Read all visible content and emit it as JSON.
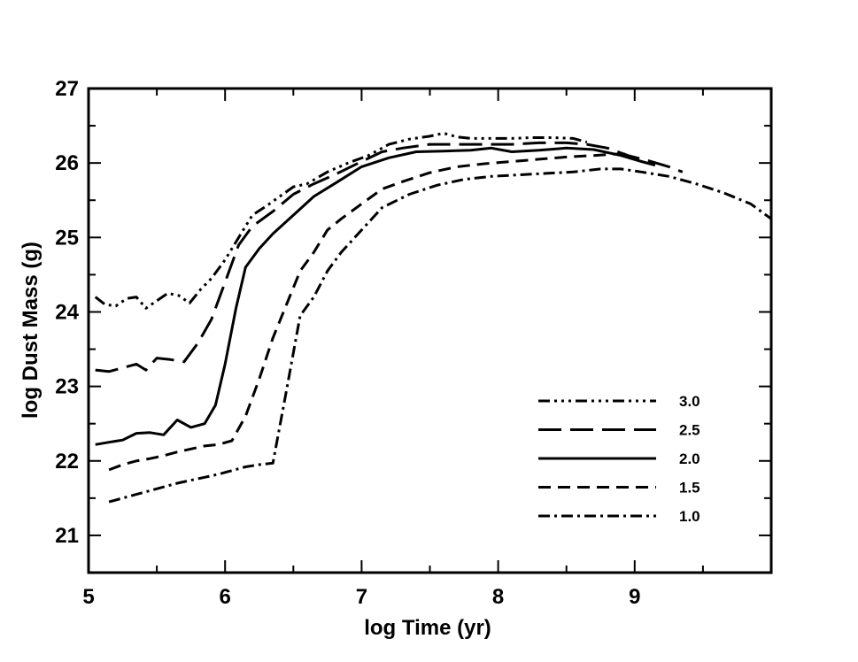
{
  "chart_data": {
    "type": "line",
    "title": "",
    "xlabel": "log Time (yr)",
    "ylabel": "log Dust Mass (g)",
    "xlim": [
      5,
      10
    ],
    "ylim": [
      20.5,
      27
    ],
    "x_ticks": [
      5,
      6,
      7,
      8,
      9
    ],
    "y_ticks": [
      21,
      22,
      23,
      24,
      25,
      26,
      27
    ],
    "legend_position": "lower-right",
    "series": [
      {
        "name": "3.0",
        "dash": "dash-dot-dot-dot",
        "x": [
          5.05,
          5.12,
          5.2,
          5.28,
          5.35,
          5.42,
          5.5,
          5.58,
          5.66,
          5.74,
          5.82,
          5.9,
          6.0,
          6.1,
          6.2,
          6.3,
          6.4,
          6.5,
          6.6,
          6.75,
          6.9,
          7.05,
          7.2,
          7.35,
          7.5,
          7.6,
          7.7,
          7.8,
          7.95,
          8.1,
          8.25,
          8.4,
          8.55,
          8.65
        ],
        "y": [
          24.2,
          24.1,
          24.08,
          24.18,
          24.2,
          24.05,
          24.15,
          24.25,
          24.22,
          24.12,
          24.3,
          24.45,
          24.7,
          25.0,
          25.3,
          25.42,
          25.55,
          25.68,
          25.72,
          25.88,
          26.0,
          26.1,
          26.25,
          26.32,
          26.36,
          26.4,
          26.35,
          26.33,
          26.33,
          26.33,
          26.34,
          26.34,
          26.33,
          26.28
        ]
      },
      {
        "name": "2.5",
        "dash": "long-dash",
        "x": [
          5.05,
          5.15,
          5.25,
          5.35,
          5.42,
          5.5,
          5.6,
          5.7,
          5.8,
          5.9,
          6.0,
          6.1,
          6.2,
          6.35,
          6.5,
          6.65,
          6.8,
          7.0,
          7.15,
          7.3,
          7.5,
          7.7,
          7.9,
          8.1,
          8.3,
          8.5,
          8.65,
          8.8,
          8.95,
          9.1,
          9.25,
          9.35
        ],
        "y": [
          23.22,
          23.2,
          23.25,
          23.3,
          23.22,
          23.38,
          23.36,
          23.33,
          23.58,
          23.9,
          24.4,
          24.9,
          25.15,
          25.35,
          25.58,
          25.72,
          25.84,
          26.02,
          26.15,
          26.2,
          26.25,
          26.25,
          26.25,
          26.25,
          26.27,
          26.27,
          26.25,
          26.2,
          26.1,
          26.03,
          25.95,
          25.88
        ]
      },
      {
        "name": "2.0",
        "dash": "solid",
        "x": [
          5.05,
          5.15,
          5.25,
          5.35,
          5.45,
          5.55,
          5.65,
          5.75,
          5.85,
          5.93,
          6.0,
          6.08,
          6.15,
          6.25,
          6.35,
          6.5,
          6.65,
          6.8,
          7.0,
          7.2,
          7.4,
          7.6,
          7.8,
          7.95,
          8.1,
          8.3,
          8.5,
          8.7,
          8.9,
          9.05,
          9.15
        ],
        "y": [
          22.22,
          22.25,
          22.28,
          22.37,
          22.38,
          22.35,
          22.55,
          22.45,
          22.5,
          22.75,
          23.3,
          24.05,
          24.6,
          24.85,
          25.05,
          25.3,
          25.55,
          25.72,
          25.95,
          26.07,
          26.15,
          26.16,
          26.17,
          26.2,
          26.15,
          26.17,
          26.2,
          26.18,
          26.1,
          26.02,
          25.97
        ]
      },
      {
        "name": "1.5",
        "dash": "dash",
        "x": [
          5.15,
          5.25,
          5.35,
          5.45,
          5.55,
          5.65,
          5.75,
          5.85,
          5.95,
          6.05,
          6.15,
          6.25,
          6.35,
          6.45,
          6.55,
          6.65,
          6.75,
          6.85,
          7.0,
          7.15,
          7.3,
          7.5,
          7.7,
          7.9,
          8.1,
          8.3,
          8.5,
          8.7,
          8.85,
          8.95
        ],
        "y": [
          21.88,
          21.95,
          22.0,
          22.03,
          22.07,
          22.12,
          22.16,
          22.2,
          22.22,
          22.27,
          22.6,
          23.1,
          23.65,
          24.1,
          24.55,
          24.8,
          25.1,
          25.25,
          25.45,
          25.65,
          25.75,
          25.87,
          25.95,
          25.99,
          26.02,
          26.05,
          26.08,
          26.1,
          26.12,
          26.12
        ]
      },
      {
        "name": "1.0",
        "dash": "dash-dot",
        "x": [
          5.15,
          5.25,
          5.35,
          5.45,
          5.55,
          5.65,
          5.75,
          5.85,
          5.95,
          6.05,
          6.15,
          6.25,
          6.35,
          6.45,
          6.55,
          6.65,
          6.75,
          6.85,
          7.0,
          7.15,
          7.35,
          7.55,
          7.75,
          7.95,
          8.15,
          8.35,
          8.55,
          8.75,
          8.9,
          9.05,
          9.25,
          9.45,
          9.65,
          9.85,
          10.0
        ],
        "y": [
          21.45,
          21.5,
          21.55,
          21.6,
          21.65,
          21.7,
          21.74,
          21.78,
          21.82,
          21.87,
          21.92,
          21.95,
          21.97,
          22.95,
          23.95,
          24.2,
          24.55,
          24.8,
          25.1,
          25.4,
          25.58,
          25.7,
          25.78,
          25.82,
          25.84,
          25.86,
          25.88,
          25.92,
          25.92,
          25.88,
          25.82,
          25.72,
          25.6,
          25.45,
          25.25
        ]
      }
    ]
  }
}
